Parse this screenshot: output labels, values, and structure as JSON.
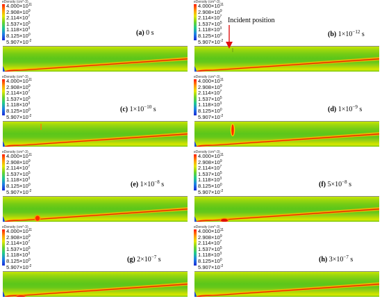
{
  "legend": {
    "title": "eDensity (cm^-3)",
    "ticks": [
      {
        "mantissa": "4.000",
        "exp": "11"
      },
      {
        "mantissa": "2.908",
        "exp": "9"
      },
      {
        "mantissa": "2.114",
        "exp": "7"
      },
      {
        "mantissa": "1.537",
        "exp": "5"
      },
      {
        "mantissa": "1.118",
        "exp": "3"
      },
      {
        "mantissa": "8.125",
        "exp": "0"
      },
      {
        "mantissa": "5.907",
        "exp": "-2"
      }
    ]
  },
  "annotation": {
    "text": "Incident position"
  },
  "panels": [
    {
      "label": "(a)",
      "time": "0 s"
    },
    {
      "label": "(b)",
      "time": "1×10",
      "exp": "−12",
      "unit": "s"
    },
    {
      "label": "(c)",
      "time": "1×10",
      "exp": "−10",
      "unit": "s"
    },
    {
      "label": "(d)",
      "time": "1×10",
      "exp": "−9",
      "unit": "s"
    },
    {
      "label": "(e)",
      "time": "1×10",
      "exp": "−8",
      "unit": "s"
    },
    {
      "label": "(f)",
      "time": "5×10",
      "exp": "−8",
      "unit": "s"
    },
    {
      "label": "(g)",
      "time": "2×10",
      "exp": "−7",
      "unit": "s"
    },
    {
      "label": "(h)",
      "time": "3×10",
      "exp": "−7",
      "unit": "s"
    }
  ]
}
